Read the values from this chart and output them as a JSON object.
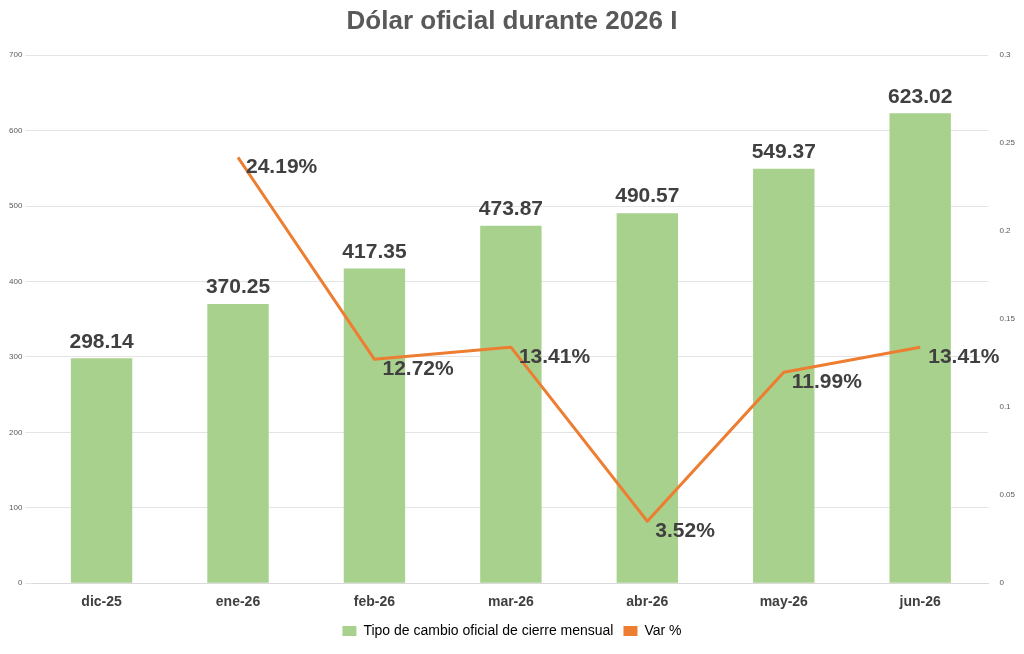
{
  "chart_data": {
    "type": "bar",
    "title": "Dólar oficial durante 2026 I",
    "categories": [
      "dic-25",
      "ene-26",
      "feb-26",
      "mar-26",
      "abr-26",
      "may-26",
      "jun-26"
    ],
    "series": [
      {
        "name": "Tipo de cambio oficial de cierre mensual",
        "color": "#a9d18e",
        "values": [
          298.14,
          370.25,
          417.35,
          473.87,
          490.57,
          549.37,
          623.02
        ],
        "value_labels": [
          "298.14",
          "370.25",
          "417.35",
          "473.87",
          "490.57",
          "549.37",
          "623.02"
        ]
      },
      {
        "name": "Var %",
        "type": "line",
        "axis": "y2",
        "color": "#ed7d31",
        "values": [
          null,
          0.2419,
          0.1272,
          0.1341,
          0.0352,
          0.1199,
          0.1341
        ],
        "value_labels": [
          null,
          "24.19%",
          "12.72%",
          "13.41%",
          "3.52%",
          "11.99%",
          "13.41%"
        ]
      }
    ],
    "ylim": [
      0,
      700
    ],
    "yticks": [
      0,
      100,
      200,
      300,
      400,
      500,
      600,
      700
    ],
    "y2lim": [
      0,
      0.3
    ],
    "y2ticks": [
      0,
      0.05,
      0.1,
      0.15,
      0.2,
      0.25,
      0.3
    ],
    "grid": "y",
    "legend": "bottom",
    "marker": "none",
    "line_style": "solid"
  }
}
